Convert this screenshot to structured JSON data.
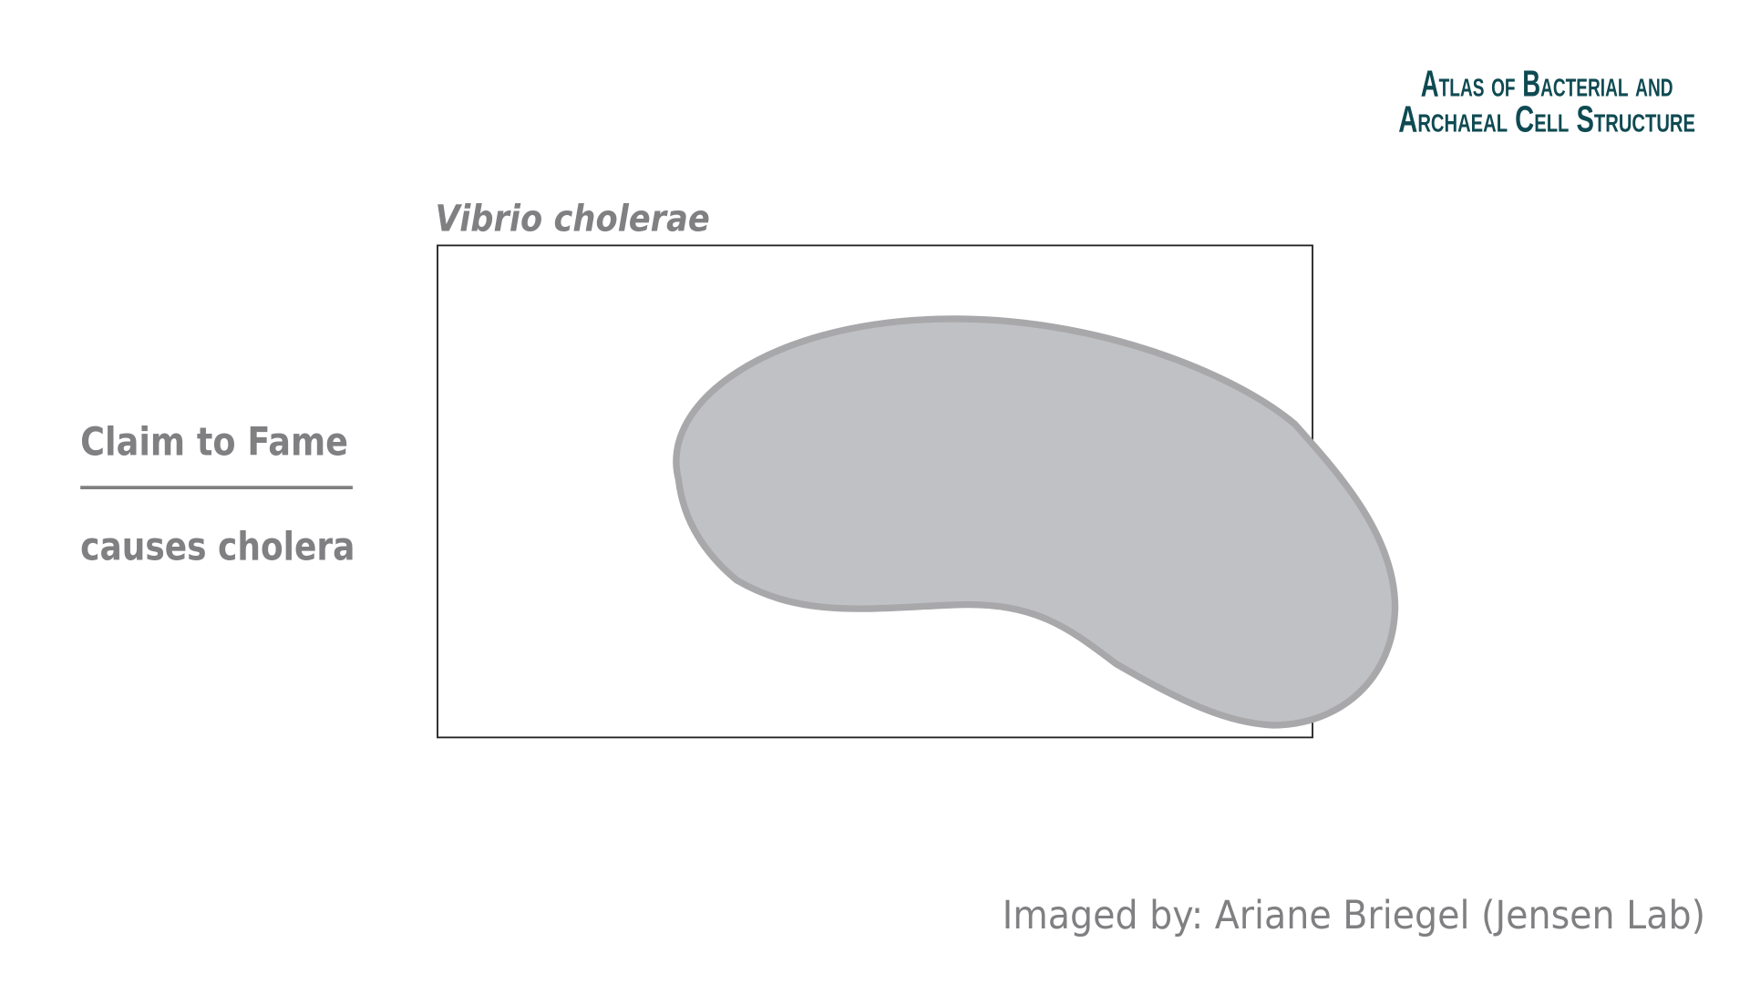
{
  "logo": {
    "line1": "Atlas of Bacterial and",
    "line2": "Archaeal Cell Structure"
  },
  "title": "Vibrio cholerae",
  "sidebar": {
    "heading": "Claim to Fame",
    "text": "causes cholera"
  },
  "credit": "Imaged by: Ariane Briegel (Jensen Lab)"
}
